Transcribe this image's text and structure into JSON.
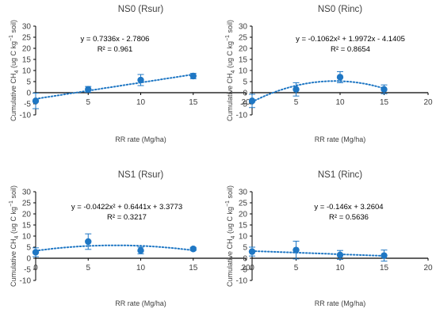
{
  "colors": {
    "marker": "#1f77c4",
    "axis": "#000000",
    "text": "#404040"
  },
  "chart_data": [
    {
      "type": "scatter",
      "title": "NS0 (Rsur)",
      "xlabel": "RR rate (Mg/ha)",
      "ylabel": "Cumulative CH4 (ug C kg-1 soil)",
      "xlim": [
        0,
        20
      ],
      "ylim": [
        -10,
        30
      ],
      "xticks": [
        "0",
        "5",
        "10",
        "15",
        "20"
      ],
      "yticks": [
        "-10",
        "-5",
        "0",
        "5",
        "10",
        "15",
        "20",
        "25",
        "30"
      ],
      "x": [
        0,
        5,
        10,
        15
      ],
      "y": [
        -3.7,
        1.5,
        5.7,
        7.5
      ],
      "yerr": [
        3.5,
        1.3,
        2.5,
        1.2
      ],
      "trend": {
        "kind": "linear",
        "coef": [
          0.7336,
          -2.7806
        ],
        "xrange": [
          0,
          15
        ],
        "equation": "y = 0.7336x - 2.7806",
        "r2": "R² = 0.961"
      }
    },
    {
      "type": "scatter",
      "title": "NS0 (Rinc)",
      "xlabel": "RR rate (Mg/ha)",
      "ylabel": "Cumulative CH4 (ug C kg-1 soil)",
      "xlim": [
        0,
        20
      ],
      "ylim": [
        -10,
        30
      ],
      "xticks": [
        "0",
        "5",
        "10",
        "15",
        "20"
      ],
      "yticks": [
        "-10",
        "-5",
        "0",
        "5",
        "10",
        "15",
        "20",
        "25",
        "30"
      ],
      "x": [
        0,
        5,
        10,
        15
      ],
      "y": [
        -3.7,
        1.5,
        7.0,
        1.5
      ],
      "yerr": [
        3.0,
        3.0,
        2.5,
        2.0
      ],
      "trend": {
        "kind": "poly2",
        "coef": [
          -0.1062,
          1.9972,
          -4.1405
        ],
        "xrange": [
          0,
          15
        ],
        "equation": "y = -0.1062x² + 1.9972x - 4.1405",
        "r2": "R² = 0.8654"
      }
    },
    {
      "type": "scatter",
      "title": "NS1 (Rsur)",
      "xlabel": "RR rate (Mg/ha)",
      "ylabel": "Cumulative CH4 (ug C kg-1 soil)",
      "xlim": [
        0,
        20
      ],
      "ylim": [
        -10,
        30
      ],
      "xticks": [
        "0",
        "5",
        "10",
        "15",
        "20"
      ],
      "yticks": [
        "-10",
        "-5",
        "0",
        "5",
        "10",
        "15",
        "20",
        "25",
        "30"
      ],
      "x": [
        0,
        5,
        10,
        15
      ],
      "y": [
        2.7,
        7.5,
        3.5,
        4.2
      ],
      "yerr": [
        2.0,
        3.5,
        1.5,
        0.7
      ],
      "trend": {
        "kind": "poly2",
        "coef": [
          -0.0422,
          0.6441,
          3.3773
        ],
        "xrange": [
          0,
          15
        ],
        "equation": "y = -0.0422x² + 0.6441x + 3.3773",
        "r2": "R² = 0.3217"
      }
    },
    {
      "type": "scatter",
      "title": "NS1 (Rinc)",
      "xlabel": "RR rate (Mg/ha)",
      "ylabel": "Cumulative CH4 (ug C kg-1 soil)",
      "xlim": [
        0,
        20
      ],
      "ylim": [
        -10,
        30
      ],
      "xticks": [
        "0",
        "5",
        "10",
        "15",
        "20"
      ],
      "yticks": [
        "-10",
        "-5",
        "0",
        "5",
        "10",
        "15",
        "20",
        "25",
        "30"
      ],
      "x": [
        0,
        5,
        10,
        15
      ],
      "y": [
        3.0,
        3.7,
        1.5,
        1.2
      ],
      "yerr": [
        2.0,
        4.0,
        2.0,
        2.5
      ],
      "trend": {
        "kind": "linear",
        "coef": [
          -0.146,
          3.2604
        ],
        "xrange": [
          0,
          15
        ],
        "equation": "y = -0.146x + 3.2604",
        "r2": "R² = 0.5636"
      }
    }
  ]
}
